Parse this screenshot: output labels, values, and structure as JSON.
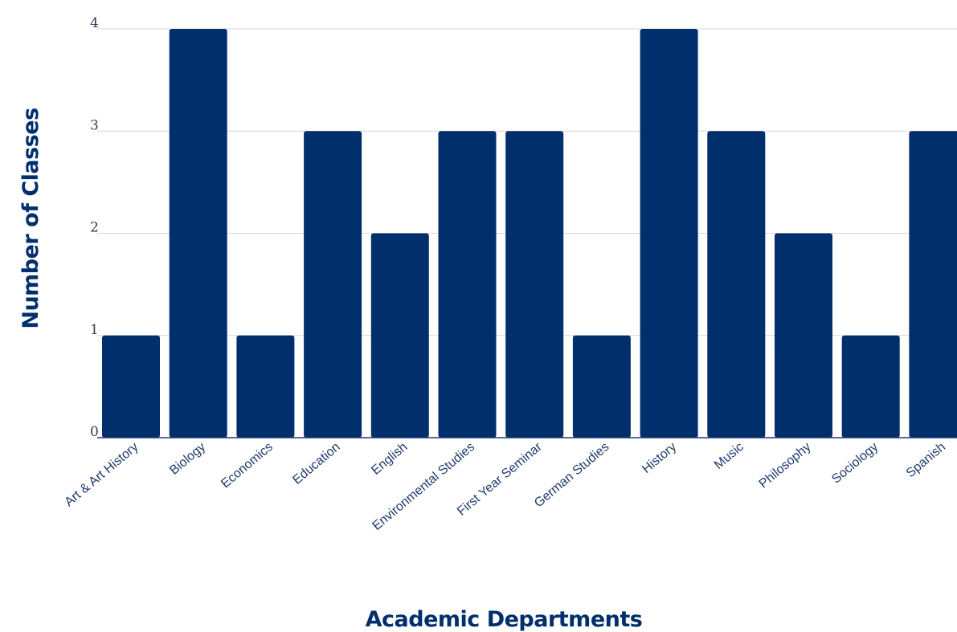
{
  "colors": {
    "bar": "#002f6c",
    "grid": "#d6d6d6",
    "text": "#1f3b6b"
  },
  "chart_data": {
    "type": "bar",
    "title": "",
    "xlabel": "Academic Departments",
    "ylabel": "Number of Classes",
    "categories": [
      "Art & Art History",
      "Biology",
      "Economics",
      "Education",
      "English",
      "Environmental Studies",
      "First Year Seminar",
      "German Studies",
      "History",
      "Music",
      "Philosophy",
      "Sociology",
      "Spanish"
    ],
    "values": [
      1,
      4,
      1,
      3,
      2,
      3,
      3,
      1,
      4,
      3,
      2,
      1,
      3
    ],
    "ylim": [
      0,
      4
    ],
    "yticks": [
      0,
      1,
      2,
      3,
      4
    ],
    "grid": true,
    "legend": "none"
  }
}
